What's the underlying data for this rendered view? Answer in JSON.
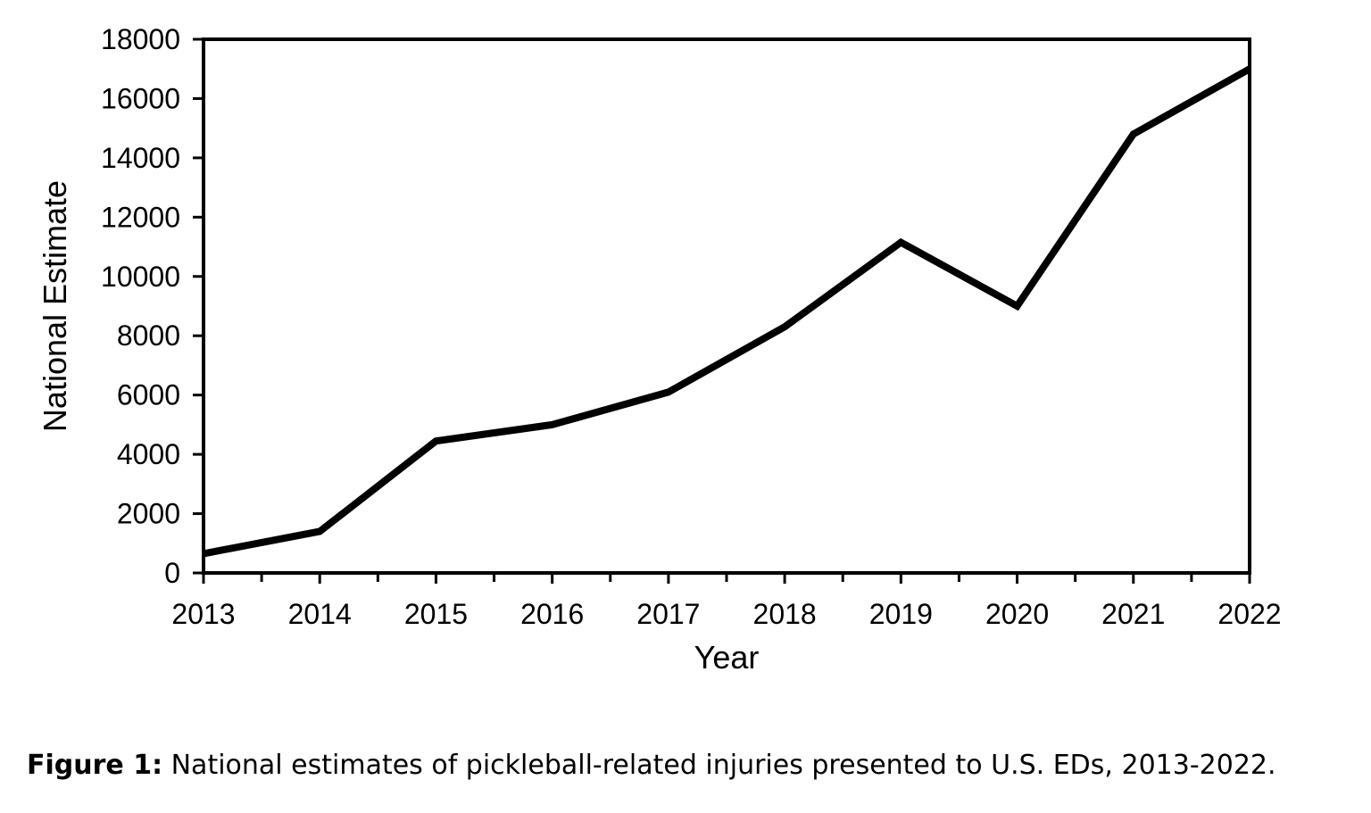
{
  "chart_data": {
    "type": "line",
    "title": "",
    "xlabel": "Year",
    "ylabel": "National Estimate",
    "x": [
      2013,
      2014,
      2015,
      2016,
      2017,
      2018,
      2019,
      2020,
      2021,
      2022
    ],
    "series": [
      {
        "values": [
          650,
          1400,
          4450,
          5000,
          6100,
          8300,
          11150,
          9000,
          14800,
          17000
        ]
      }
    ],
    "xlim": [
      2013,
      2022
    ],
    "ylim": [
      0,
      18000
    ],
    "yticks": [
      0,
      2000,
      4000,
      6000,
      8000,
      10000,
      12000,
      14000,
      16000,
      18000
    ],
    "xticks": [
      2013,
      2014,
      2015,
      2016,
      2017,
      2018,
      2019,
      2020,
      2021,
      2022
    ],
    "grid": false,
    "legend": "none",
    "line_color": "#000000"
  },
  "caption": {
    "label": "Figure 1:",
    "text": " National estimates of pickleball-related injuries presented to U.S. EDs, 2013-2022."
  }
}
